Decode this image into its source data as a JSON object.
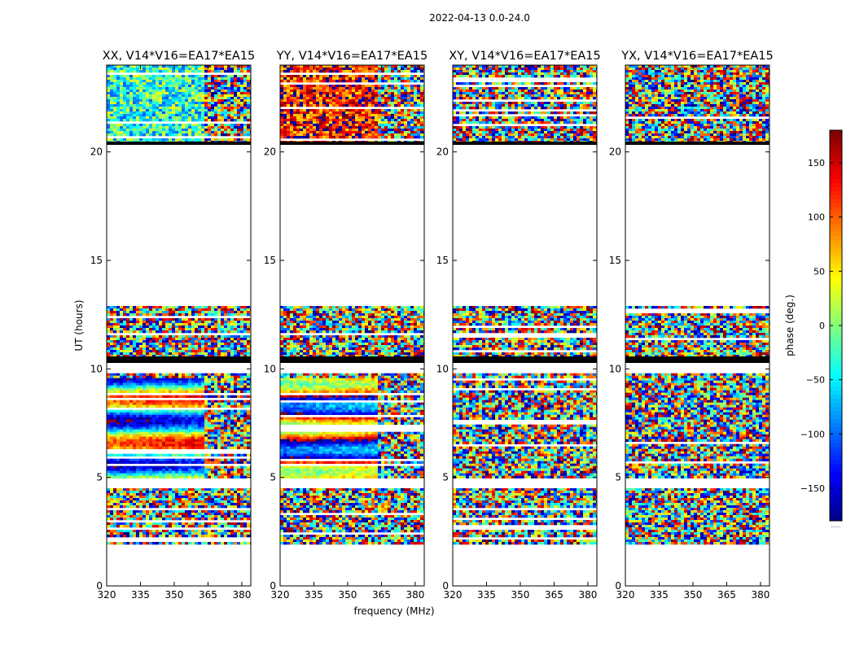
{
  "figure_title": "2022-04-13 0.0-24.0",
  "chart_data": {
    "type": "heatmap",
    "xlabel": "frequency (MHz)",
    "ylabel": "UT (hours)",
    "xlim": [
      320,
      384
    ],
    "ylim": [
      0,
      24
    ],
    "x_ticks": [
      320,
      335,
      350,
      365,
      380
    ],
    "y_ticks": [
      0,
      5,
      10,
      15,
      20
    ],
    "panels": [
      {
        "title": "XX, V14*V16=EA17*EA15",
        "coherence": 0.85,
        "base_phase": -30
      },
      {
        "title": "YY, V14*V16=EA17*EA15",
        "coherence": 0.85,
        "base_phase": 130
      },
      {
        "title": "XY, V14*V16=EA17*EA15",
        "coherence": 0.0,
        "base_phase": 0
      },
      {
        "title": "YX, V14*V16=EA17*EA15",
        "coherence": 0.0,
        "base_phase": 0
      }
    ],
    "time_segments_hours": [
      [
        2.0,
        4.5
      ],
      [
        5.0,
        9.8
      ],
      [
        10.5,
        12.9
      ],
      [
        20.5,
        24.0
      ]
    ],
    "colorbar": {
      "label": "phase (deg.)",
      "range": [
        -180,
        180
      ],
      "ticks": [
        -150,
        -100,
        -50,
        0,
        50,
        100,
        150
      ],
      "tick_labels": [
        "−150",
        "−100",
        "−50",
        "0",
        "50",
        "100",
        "150"
      ],
      "colormap": "jet",
      "footnote": "......"
    }
  }
}
